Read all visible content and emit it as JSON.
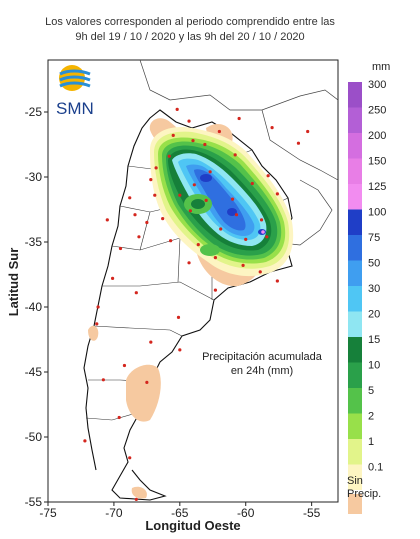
{
  "header": {
    "line1": "Los valores corresponden al periodo comprendido entre las",
    "line2": "9h del 19 / 10 / 2020  y las 9h del 20 / 10 / 2020"
  },
  "logo": {
    "text": "SMN",
    "icon": "smn-sun-waves-icon"
  },
  "legend": {
    "unit": "mm",
    "classes": [
      {
        "label": "300",
        "color": "#9b4fc8"
      },
      {
        "label": "250",
        "color": "#b35fd6"
      },
      {
        "label": "200",
        "color": "#d46ee0"
      },
      {
        "label": "150",
        "color": "#e87ee6"
      },
      {
        "label": "125",
        "color": "#f28cf0"
      },
      {
        "label": "100",
        "color": "#1f3ec7"
      },
      {
        "label": "75",
        "color": "#2f6fe0"
      },
      {
        "label": "50",
        "color": "#3f9ef0"
      },
      {
        "label": "30",
        "color": "#4fc6f4"
      },
      {
        "label": "20",
        "color": "#8fe6f2"
      },
      {
        "label": "15",
        "color": "#16803a"
      },
      {
        "label": "10",
        "color": "#2aa04a"
      },
      {
        "label": "5",
        "color": "#54c24a"
      },
      {
        "label": "2",
        "color": "#98e04a"
      },
      {
        "label": "1",
        "color": "#e2f48a"
      },
      {
        "label": "0.1",
        "color": "#fdf5c2"
      }
    ],
    "no_precip": {
      "line1": "Sin",
      "line2": "Precip.",
      "color": "#f6c9a0"
    }
  },
  "annotation": {
    "line1": "Precipitación acumulada",
    "line2": "en 24h (mm)"
  },
  "axes": {
    "xlabel": "Longitud Oeste",
    "ylabel": "Latitud Sur",
    "x_range": [
      -75,
      -53
    ],
    "y_range": [
      -55,
      -21
    ],
    "x_ticks": [
      {
        "value": -75,
        "label": "-75"
      },
      {
        "value": -70,
        "label": "-70"
      },
      {
        "value": -65,
        "label": "-65"
      },
      {
        "value": -60,
        "label": "-60"
      },
      {
        "value": -55,
        "label": "-55"
      }
    ],
    "y_ticks": [
      {
        "value": -25,
        "label": "-25"
      },
      {
        "value": -30,
        "label": "-30"
      },
      {
        "value": -35,
        "label": "-35"
      },
      {
        "value": -40,
        "label": "-40"
      },
      {
        "value": -45,
        "label": "-45"
      },
      {
        "value": -50,
        "label": "-50"
      },
      {
        "value": -55,
        "label": "-55"
      }
    ]
  },
  "stations": [
    [
      -65.2,
      -24.8
    ],
    [
      -64.3,
      -25.7
    ],
    [
      -65.5,
      -26.8
    ],
    [
      -64.0,
      -27.2
    ],
    [
      -63.1,
      -27.5
    ],
    [
      -62.0,
      -26.5
    ],
    [
      -60.5,
      -25.5
    ],
    [
      -58.0,
      -26.2
    ],
    [
      -56.0,
      -27.4
    ],
    [
      -55.3,
      -26.5
    ],
    [
      -65.8,
      -28.4
    ],
    [
      -66.8,
      -29.3
    ],
    [
      -67.2,
      -30.2
    ],
    [
      -68.8,
      -31.6
    ],
    [
      -68.4,
      -32.9
    ],
    [
      -67.5,
      -33.5
    ],
    [
      -66.3,
      -33.2
    ],
    [
      -65.0,
      -31.4
    ],
    [
      -64.2,
      -32.6
    ],
    [
      -63.0,
      -31.8
    ],
    [
      -61.0,
      -31.7
    ],
    [
      -60.7,
      -32.9
    ],
    [
      -59.5,
      -30.5
    ],
    [
      -58.3,
      -29.9
    ],
    [
      -57.6,
      -31.3
    ],
    [
      -58.8,
      -33.3
    ],
    [
      -58.4,
      -34.6
    ],
    [
      -60.0,
      -34.8
    ],
    [
      -61.9,
      -34.0
    ],
    [
      -63.6,
      -35.2
    ],
    [
      -62.3,
      -36.2
    ],
    [
      -60.2,
      -36.8
    ],
    [
      -58.9,
      -37.3
    ],
    [
      -57.6,
      -38.0
    ],
    [
      -62.3,
      -38.7
    ],
    [
      -64.3,
      -36.6
    ],
    [
      -65.7,
      -34.9
    ],
    [
      -68.1,
      -34.6
    ],
    [
      -69.5,
      -35.5
    ],
    [
      -68.3,
      -38.9
    ],
    [
      -70.1,
      -37.8
    ],
    [
      -71.2,
      -40.0
    ],
    [
      -65.1,
      -40.8
    ],
    [
      -67.2,
      -42.7
    ],
    [
      -65.0,
      -43.3
    ],
    [
      -69.2,
      -44.5
    ],
    [
      -67.5,
      -45.8
    ],
    [
      -70.8,
      -45.6
    ],
    [
      -69.6,
      -48.5
    ],
    [
      -68.8,
      -51.6
    ],
    [
      -72.2,
      -50.3
    ],
    [
      -68.3,
      -54.8
    ],
    [
      -60.8,
      -28.3
    ],
    [
      -62.7,
      -29.6
    ],
    [
      -63.9,
      -30.6
    ],
    [
      -66.9,
      -31.4
    ],
    [
      -70.5,
      -33.3
    ],
    [
      -71.3,
      -41.3
    ]
  ]
}
